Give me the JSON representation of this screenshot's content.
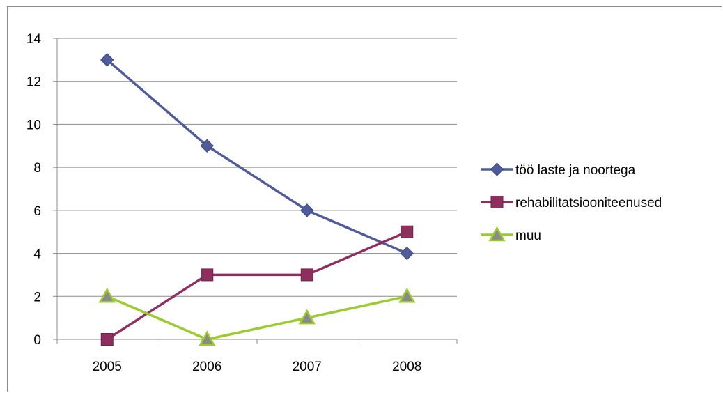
{
  "chart_data": {
    "type": "line",
    "title": "",
    "xlabel": "",
    "ylabel": "",
    "categories": [
      "2005",
      "2006",
      "2007",
      "2008"
    ],
    "ylim": [
      0,
      14
    ],
    "yticks": [
      0,
      2,
      4,
      6,
      8,
      10,
      12,
      14
    ],
    "grid": true,
    "legend": "right",
    "series": [
      {
        "name": "töö laste ja noortega",
        "values": [
          13,
          9,
          6,
          4
        ],
        "color": "#4f5b9a",
        "marker": "diamond"
      },
      {
        "name": "rehabilitatsiooniteenused",
        "values": [
          0,
          3,
          3,
          5
        ],
        "color": "#8e2f5f",
        "marker": "square"
      },
      {
        "name": "muu",
        "values": [
          2,
          0,
          1,
          2
        ],
        "color": "#9bcb2e",
        "marker": "triangle"
      }
    ]
  }
}
